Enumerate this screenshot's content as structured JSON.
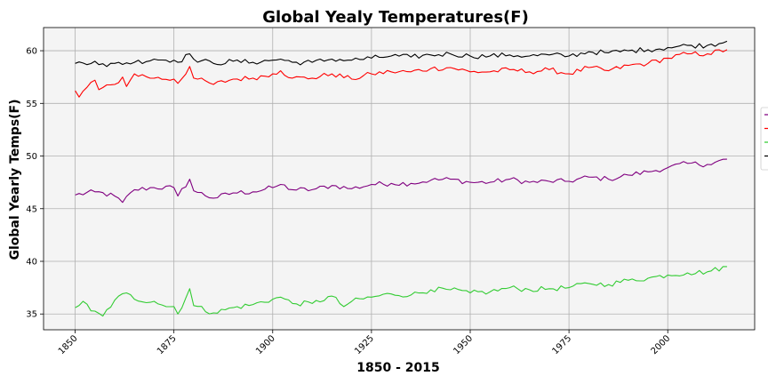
{
  "chart_data": {
    "type": "line",
    "title": "Global Yealy Temperatures(F)",
    "xlabel": "1850 - 2015",
    "ylabel": "Global Yearly Temps(F)",
    "xlim": [
      1842,
      2022
    ],
    "ylim": [
      33.5,
      62.2
    ],
    "xticks": [
      1850,
      1875,
      1900,
      1925,
      1950,
      1975,
      2000
    ],
    "yticks": [
      35,
      40,
      45,
      50,
      55,
      60
    ],
    "grid": true,
    "legend_position": "right",
    "background": "#f4f4f4",
    "series": [
      {
        "color": "#800080",
        "x_start": 1850,
        "x_end": 2015,
        "anchors": [
          [
            1850,
            46.3
          ],
          [
            1855,
            46.6
          ],
          [
            1860,
            46.2
          ],
          [
            1862,
            45.6
          ],
          [
            1865,
            46.8
          ],
          [
            1870,
            47.0
          ],
          [
            1875,
            47.0
          ],
          [
            1876,
            46.2
          ],
          [
            1879,
            47.8
          ],
          [
            1880,
            46.7
          ],
          [
            1885,
            46.0
          ],
          [
            1890,
            46.5
          ],
          [
            1895,
            46.6
          ],
          [
            1900,
            47.0
          ],
          [
            1902,
            47.3
          ],
          [
            1905,
            46.8
          ],
          [
            1910,
            46.8
          ],
          [
            1915,
            47.2
          ],
          [
            1920,
            46.9
          ],
          [
            1925,
            47.3
          ],
          [
            1930,
            47.4
          ],
          [
            1935,
            47.4
          ],
          [
            1940,
            47.7
          ],
          [
            1945,
            47.8
          ],
          [
            1950,
            47.5
          ],
          [
            1955,
            47.5
          ],
          [
            1960,
            47.8
          ],
          [
            1965,
            47.5
          ],
          [
            1970,
            47.6
          ],
          [
            1975,
            47.6
          ],
          [
            1980,
            48.0
          ],
          [
            1985,
            47.8
          ],
          [
            1990,
            48.2
          ],
          [
            1995,
            48.5
          ],
          [
            2000,
            48.9
          ],
          [
            2005,
            49.3
          ],
          [
            2010,
            49.2
          ],
          [
            2015,
            49.7
          ]
        ]
      },
      {
        "color": "#ff0000",
        "x_start": 1850,
        "x_end": 2015,
        "anchors": [
          [
            1850,
            56.2
          ],
          [
            1851,
            55.6
          ],
          [
            1854,
            57.0
          ],
          [
            1855,
            57.2
          ],
          [
            1856,
            56.3
          ],
          [
            1860,
            56.8
          ],
          [
            1862,
            57.5
          ],
          [
            1863,
            56.6
          ],
          [
            1865,
            57.8
          ],
          [
            1870,
            57.4
          ],
          [
            1875,
            57.3
          ],
          [
            1876,
            56.9
          ],
          [
            1879,
            58.5
          ],
          [
            1880,
            57.4
          ],
          [
            1885,
            56.8
          ],
          [
            1890,
            57.3
          ],
          [
            1895,
            57.4
          ],
          [
            1900,
            57.8
          ],
          [
            1902,
            58.1
          ],
          [
            1905,
            57.4
          ],
          [
            1910,
            57.4
          ],
          [
            1915,
            57.8
          ],
          [
            1920,
            57.3
          ],
          [
            1925,
            57.8
          ],
          [
            1930,
            58.0
          ],
          [
            1935,
            58.0
          ],
          [
            1940,
            58.3
          ],
          [
            1945,
            58.4
          ],
          [
            1950,
            58.0
          ],
          [
            1955,
            58.0
          ],
          [
            1960,
            58.2
          ],
          [
            1965,
            58.0
          ],
          [
            1970,
            58.2
          ],
          [
            1975,
            57.8
          ],
          [
            1980,
            58.4
          ],
          [
            1985,
            58.1
          ],
          [
            1990,
            58.6
          ],
          [
            1995,
            58.8
          ],
          [
            2000,
            59.3
          ],
          [
            2005,
            59.7
          ],
          [
            2010,
            59.7
          ],
          [
            2015,
            60.1
          ]
        ]
      },
      {
        "color": "#33cc33",
        "x_start": 1850,
        "x_end": 2015,
        "anchors": [
          [
            1850,
            35.6
          ],
          [
            1852,
            36.2
          ],
          [
            1854,
            35.3
          ],
          [
            1857,
            34.8
          ],
          [
            1860,
            36.3
          ],
          [
            1863,
            37.0
          ],
          [
            1865,
            36.4
          ],
          [
            1870,
            36.2
          ],
          [
            1873,
            35.7
          ],
          [
            1875,
            35.7
          ],
          [
            1876,
            35.0
          ],
          [
            1879,
            37.4
          ],
          [
            1880,
            35.8
          ],
          [
            1885,
            35.1
          ],
          [
            1890,
            35.6
          ],
          [
            1895,
            35.9
          ],
          [
            1900,
            36.4
          ],
          [
            1902,
            36.6
          ],
          [
            1905,
            36.0
          ],
          [
            1910,
            36.0
          ],
          [
            1915,
            36.7
          ],
          [
            1918,
            35.7
          ],
          [
            1920,
            36.2
          ],
          [
            1925,
            36.6
          ],
          [
            1930,
            36.9
          ],
          [
            1935,
            36.8
          ],
          [
            1940,
            37.3
          ],
          [
            1945,
            37.3
          ],
          [
            1950,
            37.0
          ],
          [
            1955,
            37.1
          ],
          [
            1960,
            37.5
          ],
          [
            1965,
            37.3
          ],
          [
            1970,
            37.4
          ],
          [
            1975,
            37.5
          ],
          [
            1980,
            37.9
          ],
          [
            1985,
            37.8
          ],
          [
            1990,
            38.2
          ],
          [
            1995,
            38.4
          ],
          [
            2000,
            38.7
          ],
          [
            2005,
            38.9
          ],
          [
            2010,
            39.0
          ],
          [
            2015,
            39.5
          ]
        ]
      },
      {
        "color": "#000000",
        "x_start": 1850,
        "x_end": 2015,
        "anchors": [
          [
            1850,
            58.8
          ],
          [
            1855,
            59.0
          ],
          [
            1858,
            58.5
          ],
          [
            1860,
            58.8
          ],
          [
            1865,
            58.9
          ],
          [
            1870,
            59.2
          ],
          [
            1875,
            59.1
          ],
          [
            1876,
            58.9
          ],
          [
            1879,
            59.7
          ],
          [
            1880,
            59.2
          ],
          [
            1885,
            58.8
          ],
          [
            1890,
            59.0
          ],
          [
            1895,
            58.9
          ],
          [
            1900,
            59.1
          ],
          [
            1902,
            59.2
          ],
          [
            1905,
            58.9
          ],
          [
            1910,
            58.9
          ],
          [
            1915,
            59.2
          ],
          [
            1920,
            59.1
          ],
          [
            1925,
            59.3
          ],
          [
            1930,
            59.5
          ],
          [
            1935,
            59.4
          ],
          [
            1940,
            59.6
          ],
          [
            1945,
            59.7
          ],
          [
            1950,
            59.5
          ],
          [
            1955,
            59.5
          ],
          [
            1960,
            59.6
          ],
          [
            1965,
            59.5
          ],
          [
            1970,
            59.6
          ],
          [
            1975,
            59.5
          ],
          [
            1980,
            59.9
          ],
          [
            1985,
            59.8
          ],
          [
            1990,
            60.0
          ],
          [
            1995,
            60.1
          ],
          [
            2000,
            60.3
          ],
          [
            2005,
            60.5
          ],
          [
            2010,
            60.5
          ],
          [
            2015,
            60.9
          ]
        ]
      }
    ]
  }
}
